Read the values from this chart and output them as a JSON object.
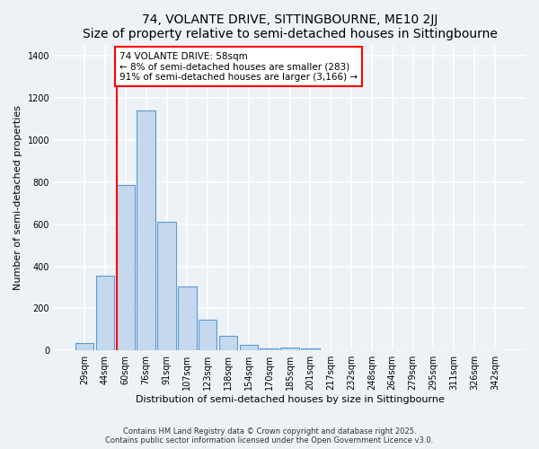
{
  "title": "74, VOLANTE DRIVE, SITTINGBOURNE, ME10 2JJ",
  "subtitle": "Size of property relative to semi-detached houses in Sittingbourne",
  "xlabel": "Distribution of semi-detached houses by size in Sittingbourne",
  "ylabel": "Number of semi-detached properties",
  "categories": [
    "29sqm",
    "44sqm",
    "60sqm",
    "76sqm",
    "91sqm",
    "107sqm",
    "123sqm",
    "138sqm",
    "154sqm",
    "170sqm",
    "185sqm",
    "201sqm",
    "217sqm",
    "232sqm",
    "248sqm",
    "264sqm",
    "279sqm",
    "295sqm",
    "311sqm",
    "326sqm",
    "342sqm"
  ],
  "values": [
    35,
    355,
    785,
    1140,
    610,
    305,
    148,
    70,
    25,
    10,
    12,
    10,
    0,
    0,
    0,
    0,
    0,
    0,
    0,
    0,
    0
  ],
  "bar_color": "#c5d8ed",
  "bar_edge_color": "#5b9bd5",
  "vline_color": "red",
  "annotation_text": "74 VOLANTE DRIVE: 58sqm\n← 8% of semi-detached houses are smaller (283)\n91% of semi-detached houses are larger (3,166) →",
  "annotation_box_color": "white",
  "annotation_box_edge_color": "red",
  "ylim": [
    0,
    1450
  ],
  "yticks": [
    0,
    200,
    400,
    600,
    800,
    1000,
    1200,
    1400
  ],
  "footnote": "Contains HM Land Registry data © Crown copyright and database right 2025.\nContains public sector information licensed under the Open Government Licence v3.0.",
  "bg_color": "#edf2f7",
  "grid_color": "white",
  "title_fontsize": 10,
  "axis_label_fontsize": 8,
  "tick_fontsize": 7,
  "annotation_fontsize": 7.5
}
